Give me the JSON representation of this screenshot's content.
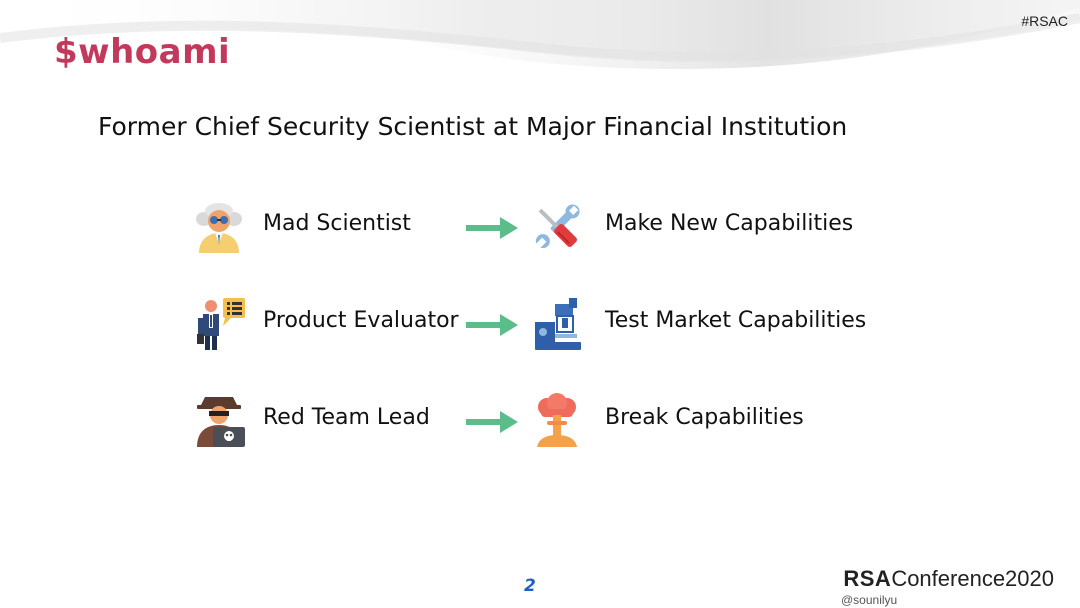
{
  "header": {
    "hashtag": "#RSAC",
    "title": "$whoami"
  },
  "subtitle": "Former Chief Security Scientist at Major Financial Institution",
  "rows": [
    {
      "left_label": "Mad Scientist",
      "left_icon": "mad-scientist-icon",
      "right_label": "Make New Capabilities",
      "right_icon": "wrench-screwdriver-icon"
    },
    {
      "left_label": "Product Evaluator",
      "left_icon": "evaluator-icon",
      "right_label": "Test Market Capabilities",
      "right_icon": "microscope-icon"
    },
    {
      "left_label": "Red Team Lead",
      "left_icon": "hacker-icon",
      "right_label": "Break Capabilities",
      "right_icon": "explosion-icon"
    }
  ],
  "footer": {
    "page_number": "2",
    "brand_bold": "RSA",
    "brand_rest": "Conference2020",
    "handle": "@sounilyu"
  },
  "colors": {
    "title": "#c2395b",
    "arrow": "#5bbd8a",
    "page_number": "#1f5fbf"
  }
}
